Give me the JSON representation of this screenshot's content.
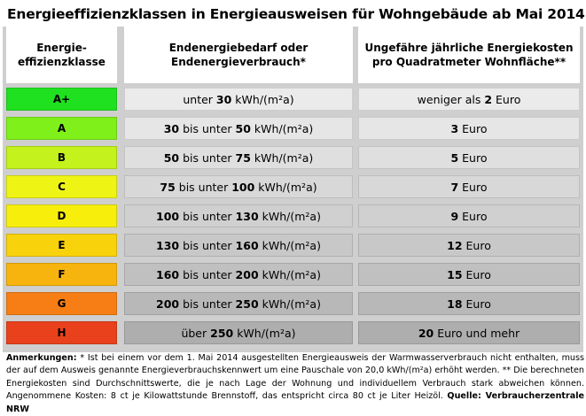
{
  "title": "Energieeffizienzklassen in Energieausweisen für Wohngebäude ab Mai 2014",
  "headers": {
    "class": "Energie-\neffizienzklasse",
    "demand": "Endenergiebedarf oder\nEndenergieverbrauch*",
    "cost": "Ungefähre jährliche Energiekosten\npro Quadratmeter Wohnfläche**"
  },
  "rows": [
    {
      "cls": "A+",
      "color": "#1fe11f",
      "demand_pre": "unter ",
      "demand_a": "30",
      "demand_mid": "",
      "demand_b": "",
      "unit": " kWh/(m²a)",
      "cost_pre": "weniger als ",
      "cost_val": "2",
      "cost_post": " Euro",
      "shade": "#ebebeb"
    },
    {
      "cls": "A",
      "color": "#7ff01a",
      "demand_pre": "",
      "demand_a": "30",
      "demand_mid": " bis unter ",
      "demand_b": "50",
      "unit": " kWh/(m²a)",
      "cost_pre": "",
      "cost_val": "3",
      "cost_post": " Euro",
      "shade": "#e6e6e6"
    },
    {
      "cls": "B",
      "color": "#c3f21c",
      "demand_pre": "",
      "demand_a": "50",
      "demand_mid": " bis unter ",
      "demand_b": "75",
      "unit": " kWh/(m²a)",
      "cost_pre": "",
      "cost_val": "5",
      "cost_post": " Euro",
      "shade": "#dfdfdf"
    },
    {
      "cls": "C",
      "color": "#eef514",
      "demand_pre": "",
      "demand_a": "75",
      "demand_mid": " bis unter ",
      "demand_b": "100",
      "unit": " kWh/(m²a)",
      "cost_pre": "",
      "cost_val": "7",
      "cost_post": " Euro",
      "shade": "#d8d8d8"
    },
    {
      "cls": "D",
      "color": "#f7ee0c",
      "demand_pre": "",
      "demand_a": "100",
      "demand_mid": " bis unter ",
      "demand_b": "130",
      "unit": " kWh/(m²a)",
      "cost_pre": "",
      "cost_val": "9",
      "cost_post": " Euro",
      "shade": "#d0d0d0"
    },
    {
      "cls": "E",
      "color": "#f8d20b",
      "demand_pre": "",
      "demand_a": "130",
      "demand_mid": " bis unter ",
      "demand_b": "160",
      "unit": " kWh/(m²a)",
      "cost_pre": "",
      "cost_val": "12",
      "cost_post": " Euro",
      "shade": "#c8c8c8"
    },
    {
      "cls": "F",
      "color": "#f7b40e",
      "demand_pre": "",
      "demand_a": "160",
      "demand_mid": " bis unter ",
      "demand_b": "200",
      "unit": " kWh/(m²a)",
      "cost_pre": "",
      "cost_val": "15",
      "cost_post": " Euro",
      "shade": "#c0c0c0"
    },
    {
      "cls": "G",
      "color": "#f67e14",
      "demand_pre": "",
      "demand_a": "200",
      "demand_mid": " bis unter ",
      "demand_b": "250",
      "unit": " kWh/(m²a)",
      "cost_pre": "",
      "cost_val": "18",
      "cost_post": " Euro",
      "shade": "#b8b8b8"
    },
    {
      "cls": "H",
      "color": "#e8411c",
      "demand_pre": "über ",
      "demand_a": "250",
      "demand_mid": "",
      "demand_b": "",
      "unit": " kWh/(m²a)",
      "cost_pre": "",
      "cost_val": "20",
      "cost_post": " Euro und mehr",
      "shade": "#aeaeae"
    }
  ],
  "notes": {
    "label": "Anmerkungen:",
    "text": " * Ist bei einem vor dem 1. Mai 2014 ausgestellten Energieausweis der Warmwasserverbrauch nicht enthalten, muss der auf dem Ausweis genannte Energieverbrauchskennwert um eine Pauschale von 20,0 kWh/(m²a) erhöht werden.  ** Die berechneten Energiekosten sind Durchschnittswerte, die je nach Lage der Wohnung und individuellem Verbrauch stark abweichen können. Angenommene Kosten: 8 ct je Kilowattstunde Brennstoff, das entspricht circa 80 ct je Liter Heizöl.",
    "source": "Quelle: Verbraucherzentrale NRW"
  }
}
